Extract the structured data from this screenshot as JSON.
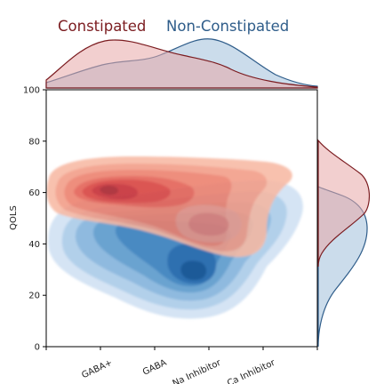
{
  "chart_data": {
    "type": "kde-joint",
    "legend_placement": "top",
    "xlabel": "",
    "ylabel": "QOLS",
    "ylim": [
      0,
      100
    ],
    "yticks": [
      0,
      20,
      40,
      60,
      80,
      100
    ],
    "categories": [
      "GABA+",
      "GABA",
      "Na Inhibitor",
      "Ca Inhibitor"
    ],
    "series": [
      {
        "name": "Constipated",
        "color": "#7b1c20",
        "fill": "#e58a80",
        "centers": [
          {
            "category": "GABA+",
            "qols": 61
          },
          {
            "category": "Na Inhibitor",
            "qols": 48
          }
        ],
        "y_mode": 60
      },
      {
        "name": "Non-Constipated",
        "color": "#2f5d8a",
        "fill": "#6aa3d0",
        "centers": [
          {
            "category": "GABA",
            "qols": 42
          },
          {
            "category": "Na Inhibitor",
            "qols": 29
          }
        ],
        "y_mode": 45
      }
    ]
  }
}
